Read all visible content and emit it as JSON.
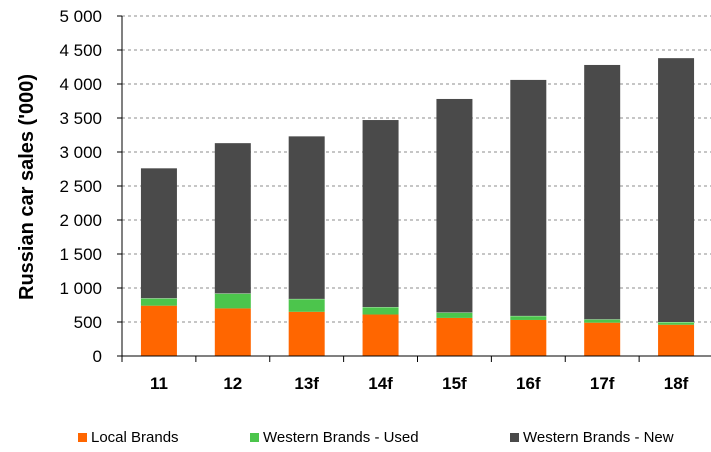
{
  "chart_data": {
    "type": "bar",
    "stacked": true,
    "categories": [
      "11",
      "12",
      "13f",
      "14f",
      "15f",
      "16f",
      "17f",
      "18f"
    ],
    "series": [
      {
        "name": "Local Brands",
        "color": "#FF6600",
        "values": [
          740,
          700,
          650,
          610,
          560,
          530,
          490,
          460
        ]
      },
      {
        "name": "Western Brands - Used",
        "color": "#4CC54C",
        "values": [
          110,
          220,
          190,
          110,
          80,
          60,
          50,
          40
        ]
      },
      {
        "name": "Western Brands - New",
        "color": "#4A4A4A",
        "values": [
          1910,
          2210,
          2390,
          2750,
          3140,
          3470,
          3740,
          3880
        ]
      }
    ],
    "ylabel": "Russian car sales ('000)",
    "xlabel": "",
    "ylim": [
      0,
      5000
    ],
    "yticks": [
      0,
      500,
      1000,
      1500,
      2000,
      2500,
      3000,
      3500,
      4000,
      4500,
      5000
    ],
    "ytick_labels": [
      "0",
      "500",
      "1 000",
      "1 500",
      "2 000",
      "2 500",
      "3 000",
      "3 500",
      "4 000",
      "4 500",
      "5 000"
    ],
    "grid": "horizontal-dashed",
    "legend_position": "bottom"
  }
}
